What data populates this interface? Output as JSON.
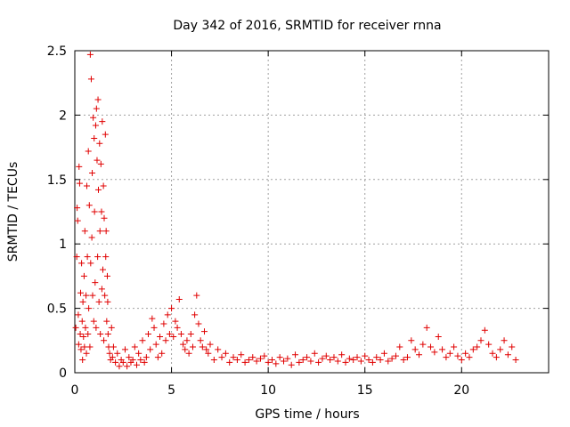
{
  "chart_data": {
    "type": "scatter",
    "title": "Day 342 of 2016, SRMTID for receiver rnna",
    "xlabel": "GPS time / hours",
    "ylabel": "SRMTID / TECUs",
    "xlim": [
      0,
      24.5
    ],
    "ylim": [
      0,
      2.5
    ],
    "x_ticks": [
      0,
      5,
      10,
      15,
      20
    ],
    "x_tick_labels": [
      "0",
      "5",
      "10",
      "15",
      "20"
    ],
    "y_ticks": [
      0,
      0.5,
      1,
      1.5,
      2,
      2.5
    ],
    "y_tick_labels": [
      "0",
      "0.5",
      "1",
      "1.5",
      "2",
      "2.5"
    ],
    "grid": true,
    "marker": "+",
    "color": "#e00000",
    "series": [
      {
        "name": "SRMTID",
        "x": [
          0.05,
          0.1,
          0.12,
          0.15,
          0.18,
          0.2,
          0.22,
          0.25,
          0.28,
          0.3,
          0.32,
          0.35,
          0.38,
          0.4,
          0.42,
          0.45,
          0.48,
          0.5,
          0.52,
          0.55,
          0.58,
          0.6,
          0.62,
          0.65,
          0.68,
          0.7,
          0.72,
          0.75,
          0.78,
          0.8,
          0.82,
          0.85,
          0.88,
          0.9,
          0.92,
          0.95,
          0.98,
          1.0,
          1.02,
          1.05,
          1.08,
          1.1,
          1.12,
          1.15,
          1.18,
          1.2,
          1.22,
          1.25,
          1.28,
          1.3,
          1.32,
          1.35,
          1.38,
          1.4,
          1.42,
          1.45,
          1.48,
          1.5,
          1.52,
          1.55,
          1.58,
          1.6,
          1.62,
          1.65,
          1.68,
          1.7,
          1.72,
          1.75,
          1.8,
          1.85,
          1.9,
          1.95,
          2.0,
          2.1,
          2.2,
          2.3,
          2.4,
          2.5,
          2.6,
          2.7,
          2.8,
          2.9,
          3.0,
          3.1,
          3.2,
          3.3,
          3.4,
          3.5,
          3.6,
          3.7,
          3.8,
          3.9,
          4.0,
          4.1,
          4.2,
          4.3,
          4.4,
          4.5,
          4.6,
          4.7,
          4.8,
          4.9,
          5.0,
          5.1,
          5.2,
          5.3,
          5.4,
          5.5,
          5.6,
          5.7,
          5.8,
          5.9,
          6.0,
          6.1,
          6.2,
          6.3,
          6.4,
          6.5,
          6.6,
          6.7,
          6.8,
          6.9,
          7.0,
          7.2,
          7.4,
          7.6,
          7.8,
          8.0,
          8.2,
          8.4,
          8.6,
          8.8,
          9.0,
          9.2,
          9.4,
          9.6,
          9.8,
          10.0,
          10.2,
          10.4,
          10.6,
          10.8,
          11.0,
          11.2,
          11.4,
          11.6,
          11.8,
          12.0,
          12.2,
          12.4,
          12.6,
          12.8,
          13.0,
          13.2,
          13.4,
          13.6,
          13.8,
          14.0,
          14.2,
          14.4,
          14.6,
          14.8,
          15.0,
          15.2,
          15.4,
          15.6,
          15.8,
          16.0,
          16.2,
          16.4,
          16.6,
          16.8,
          17.0,
          17.2,
          17.4,
          17.6,
          17.8,
          18.0,
          18.2,
          18.4,
          18.6,
          18.8,
          19.0,
          19.2,
          19.4,
          19.6,
          19.8,
          20.0,
          20.2,
          20.4,
          20.6,
          20.8,
          21.0,
          21.2,
          21.4,
          21.6,
          21.8,
          22.0,
          22.2,
          22.4,
          22.6,
          22.8
        ],
        "y": [
          0.35,
          0.9,
          1.28,
          1.18,
          0.45,
          0.22,
          1.6,
          1.47,
          0.3,
          0.62,
          0.18,
          0.85,
          0.4,
          0.1,
          0.55,
          0.28,
          0.75,
          0.2,
          1.1,
          0.35,
          0.6,
          0.15,
          1.45,
          0.9,
          0.3,
          1.72,
          0.5,
          1.3,
          0.2,
          2.47,
          0.85,
          2.28,
          1.05,
          1.55,
          0.6,
          1.98,
          0.4,
          1.82,
          1.25,
          0.7,
          1.92,
          0.35,
          2.05,
          1.65,
          0.9,
          2.12,
          1.42,
          0.55,
          1.78,
          1.1,
          0.3,
          1.62,
          1.25,
          0.65,
          1.95,
          0.8,
          1.45,
          0.25,
          1.2,
          0.6,
          1.85,
          0.9,
          1.1,
          0.4,
          0.75,
          0.55,
          0.3,
          0.2,
          0.15,
          0.1,
          0.35,
          0.12,
          0.2,
          0.08,
          0.15,
          0.05,
          0.1,
          0.08,
          0.18,
          0.05,
          0.12,
          0.08,
          0.1,
          0.2,
          0.06,
          0.15,
          0.1,
          0.25,
          0.08,
          0.12,
          0.3,
          0.18,
          0.42,
          0.35,
          0.22,
          0.12,
          0.28,
          0.15,
          0.38,
          0.25,
          0.45,
          0.3,
          0.5,
          0.28,
          0.4,
          0.35,
          0.57,
          0.3,
          0.22,
          0.18,
          0.25,
          0.15,
          0.3,
          0.2,
          0.45,
          0.6,
          0.38,
          0.25,
          0.2,
          0.32,
          0.18,
          0.15,
          0.22,
          0.1,
          0.18,
          0.12,
          0.15,
          0.08,
          0.12,
          0.1,
          0.14,
          0.08,
          0.1,
          0.12,
          0.09,
          0.11,
          0.13,
          0.08,
          0.1,
          0.07,
          0.12,
          0.09,
          0.11,
          0.06,
          0.14,
          0.08,
          0.1,
          0.12,
          0.09,
          0.15,
          0.08,
          0.11,
          0.13,
          0.1,
          0.12,
          0.09,
          0.14,
          0.08,
          0.11,
          0.1,
          0.12,
          0.09,
          0.13,
          0.1,
          0.08,
          0.12,
          0.1,
          0.15,
          0.09,
          0.11,
          0.13,
          0.2,
          0.1,
          0.12,
          0.25,
          0.18,
          0.14,
          0.22,
          0.35,
          0.2,
          0.16,
          0.28,
          0.18,
          0.12,
          0.15,
          0.2,
          0.13,
          0.1,
          0.15,
          0.12,
          0.18,
          0.2,
          0.25,
          0.33,
          0.22,
          0.15,
          0.12,
          0.18,
          0.25,
          0.14,
          0.2,
          0.1
        ]
      }
    ]
  }
}
